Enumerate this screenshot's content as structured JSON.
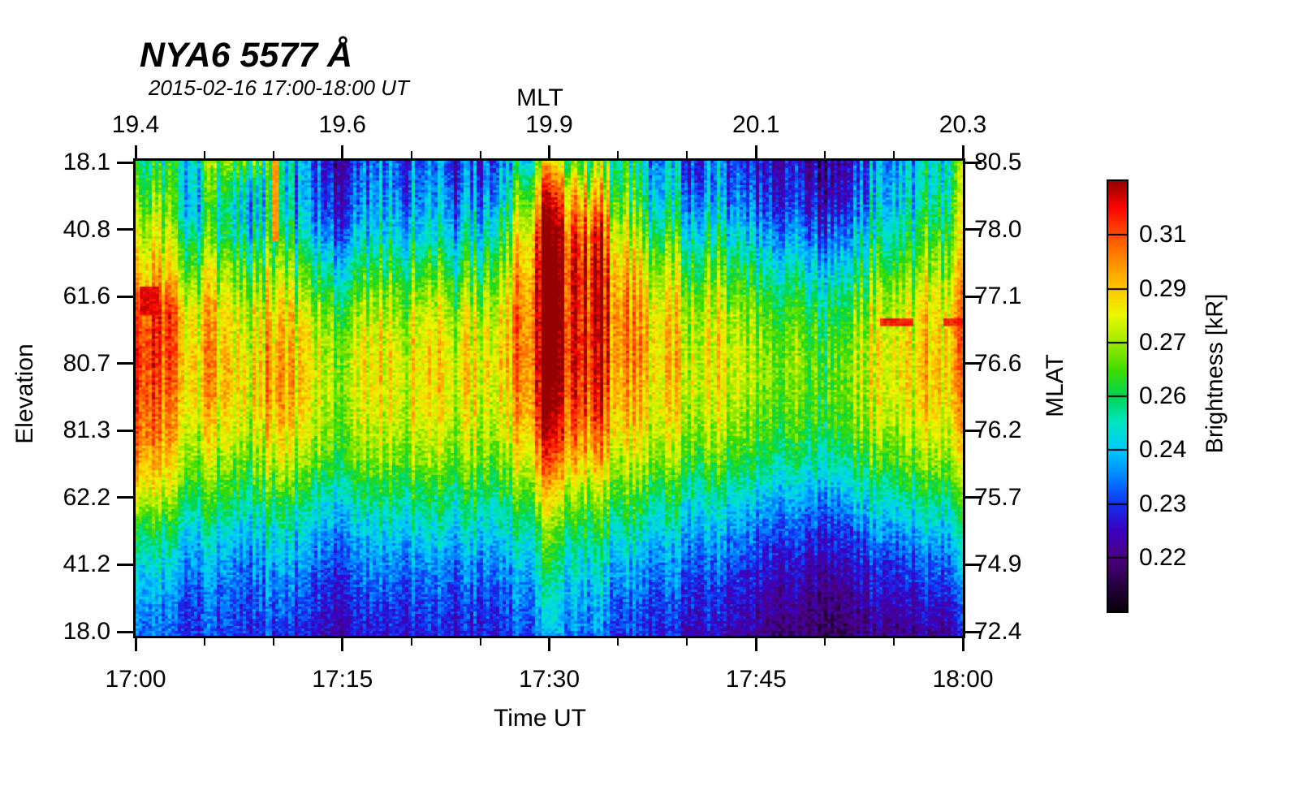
{
  "chart_data": {
    "type": "heatmap",
    "title": "NYA6 5577 Å",
    "subtitle": "2015-02-16 17:00-18:00 UT",
    "x": {
      "label": "Time UT",
      "range_minutes": [
        0,
        60
      ],
      "major_ticks": [
        "17:00",
        "17:15",
        "17:30",
        "17:45",
        "18:00"
      ],
      "minor_tick_every_minutes": 5
    },
    "x_top": {
      "label": "MLT",
      "tick_labels": [
        "19.4",
        "19.6",
        "19.9",
        "20.1",
        "20.3"
      ]
    },
    "y_left": {
      "label": "Elevation",
      "tick_labels": [
        "18.1",
        "40.8",
        "61.6",
        "80.7",
        "81.3",
        "62.2",
        "41.2",
        "18.0"
      ]
    },
    "y_right": {
      "label": "MLAT",
      "tick_labels": [
        "80.5",
        "78.0",
        "77.1",
        "76.6",
        "76.2",
        "75.7",
        "74.9",
        "72.4"
      ]
    },
    "colorbar": {
      "label": "Brightness [kR]",
      "tick_labels": [
        "0.31",
        "0.29",
        "0.27",
        "0.26",
        "0.24",
        "0.23",
        "0.22"
      ],
      "segments": 8
    },
    "colormap_stops": [
      [
        0.0,
        "#0a000a"
      ],
      [
        0.06,
        "#26003e"
      ],
      [
        0.125,
        "#4b0082"
      ],
      [
        0.19,
        "#3a00c0"
      ],
      [
        0.25,
        "#1430f0"
      ],
      [
        0.31,
        "#0080ff"
      ],
      [
        0.375,
        "#00c8ff"
      ],
      [
        0.44,
        "#00e6c0"
      ],
      [
        0.5,
        "#00d455"
      ],
      [
        0.56,
        "#3cdc00"
      ],
      [
        0.625,
        "#a0e800"
      ],
      [
        0.69,
        "#eaf800"
      ],
      [
        0.75,
        "#ffc800"
      ],
      [
        0.81,
        "#ff9100"
      ],
      [
        0.875,
        "#ff4e00"
      ],
      [
        0.94,
        "#f80400"
      ],
      [
        1.0,
        "#960000"
      ]
    ],
    "grid_rows": 20,
    "grid_cols": 30,
    "grid_columns": [
      [
        0.5,
        0.55,
        0.62,
        0.68,
        0.73,
        0.78,
        0.85,
        0.9,
        0.92,
        0.9,
        0.88,
        0.85,
        0.8,
        0.72,
        0.6,
        0.5,
        0.42,
        0.38,
        0.33,
        0.3
      ],
      [
        0.45,
        0.5,
        0.56,
        0.62,
        0.68,
        0.76,
        0.88,
        0.86,
        0.85,
        0.83,
        0.8,
        0.78,
        0.72,
        0.65,
        0.55,
        0.46,
        0.4,
        0.35,
        0.3,
        0.28
      ],
      [
        0.52,
        0.48,
        0.46,
        0.55,
        0.62,
        0.7,
        0.76,
        0.78,
        0.8,
        0.78,
        0.75,
        0.7,
        0.65,
        0.58,
        0.5,
        0.42,
        0.37,
        0.32,
        0.29,
        0.27
      ],
      [
        0.58,
        0.52,
        0.48,
        0.5,
        0.6,
        0.66,
        0.71,
        0.73,
        0.75,
        0.75,
        0.72,
        0.68,
        0.62,
        0.55,
        0.48,
        0.4,
        0.35,
        0.3,
        0.28,
        0.25
      ],
      [
        0.6,
        0.45,
        0.4,
        0.46,
        0.55,
        0.61,
        0.68,
        0.7,
        0.72,
        0.72,
        0.7,
        0.65,
        0.6,
        0.52,
        0.45,
        0.38,
        0.33,
        0.3,
        0.27,
        0.24
      ],
      [
        0.3,
        0.28,
        0.31,
        0.38,
        0.48,
        0.56,
        0.62,
        0.66,
        0.7,
        0.7,
        0.68,
        0.64,
        0.58,
        0.5,
        0.42,
        0.36,
        0.3,
        0.26,
        0.23,
        0.2
      ],
      [
        0.25,
        0.25,
        0.28,
        0.35,
        0.45,
        0.52,
        0.6,
        0.64,
        0.66,
        0.66,
        0.65,
        0.62,
        0.56,
        0.48,
        0.4,
        0.34,
        0.29,
        0.25,
        0.22,
        0.19
      ],
      [
        0.22,
        0.24,
        0.27,
        0.33,
        0.42,
        0.5,
        0.58,
        0.62,
        0.64,
        0.65,
        0.63,
        0.6,
        0.55,
        0.47,
        0.4,
        0.33,
        0.28,
        0.24,
        0.21,
        0.18
      ],
      [
        0.24,
        0.26,
        0.3,
        0.36,
        0.44,
        0.52,
        0.6,
        0.64,
        0.66,
        0.66,
        0.64,
        0.61,
        0.56,
        0.48,
        0.41,
        0.35,
        0.3,
        0.26,
        0.22,
        0.19
      ],
      [
        0.26,
        0.28,
        0.32,
        0.38,
        0.46,
        0.54,
        0.6,
        0.64,
        0.67,
        0.67,
        0.65,
        0.62,
        0.57,
        0.5,
        0.43,
        0.36,
        0.31,
        0.27,
        0.23,
        0.2
      ],
      [
        0.28,
        0.3,
        0.34,
        0.4,
        0.5,
        0.58,
        0.64,
        0.68,
        0.7,
        0.7,
        0.68,
        0.64,
        0.6,
        0.52,
        0.45,
        0.38,
        0.32,
        0.28,
        0.25,
        0.22
      ],
      [
        0.26,
        0.28,
        0.32,
        0.4,
        0.48,
        0.56,
        0.63,
        0.67,
        0.69,
        0.69,
        0.67,
        0.63,
        0.58,
        0.5,
        0.44,
        0.37,
        0.31,
        0.27,
        0.24,
        0.21
      ],
      [
        0.28,
        0.3,
        0.35,
        0.42,
        0.5,
        0.58,
        0.65,
        0.68,
        0.7,
        0.7,
        0.68,
        0.65,
        0.6,
        0.53,
        0.46,
        0.39,
        0.33,
        0.28,
        0.25,
        0.22
      ],
      [
        0.4,
        0.45,
        0.52,
        0.6,
        0.67,
        0.72,
        0.76,
        0.78,
        0.78,
        0.76,
        0.73,
        0.69,
        0.63,
        0.56,
        0.49,
        0.43,
        0.37,
        0.32,
        0.28,
        0.25
      ],
      [
        0.6,
        0.75,
        0.85,
        0.92,
        0.95,
        0.97,
        0.98,
        0.98,
        0.97,
        0.95,
        0.92,
        0.87,
        0.8,
        0.7,
        0.6,
        0.52,
        0.45,
        0.4,
        0.36,
        0.32
      ],
      [
        0.65,
        0.82,
        0.92,
        0.97,
        1.0,
        1.0,
        1.0,
        1.0,
        1.0,
        0.98,
        0.95,
        0.9,
        0.82,
        0.72,
        0.62,
        0.54,
        0.47,
        0.42,
        0.38,
        0.34
      ],
      [
        0.6,
        0.72,
        0.84,
        0.92,
        0.96,
        0.97,
        0.97,
        0.96,
        0.95,
        0.93,
        0.9,
        0.84,
        0.76,
        0.66,
        0.57,
        0.5,
        0.44,
        0.39,
        0.35,
        0.31
      ],
      [
        0.45,
        0.5,
        0.56,
        0.63,
        0.7,
        0.74,
        0.77,
        0.78,
        0.77,
        0.75,
        0.72,
        0.68,
        0.62,
        0.55,
        0.48,
        0.41,
        0.35,
        0.3,
        0.26,
        0.23
      ],
      [
        0.38,
        0.42,
        0.48,
        0.56,
        0.64,
        0.7,
        0.74,
        0.76,
        0.76,
        0.74,
        0.72,
        0.68,
        0.62,
        0.54,
        0.47,
        0.4,
        0.34,
        0.3,
        0.26,
        0.23
      ],
      [
        0.32,
        0.36,
        0.42,
        0.5,
        0.58,
        0.64,
        0.69,
        0.71,
        0.72,
        0.71,
        0.69,
        0.65,
        0.59,
        0.51,
        0.44,
        0.37,
        0.32,
        0.28,
        0.24,
        0.21
      ],
      [
        0.28,
        0.3,
        0.36,
        0.44,
        0.52,
        0.59,
        0.64,
        0.67,
        0.68,
        0.67,
        0.65,
        0.61,
        0.55,
        0.47,
        0.4,
        0.34,
        0.29,
        0.25,
        0.22,
        0.19
      ],
      [
        0.25,
        0.27,
        0.32,
        0.4,
        0.48,
        0.55,
        0.61,
        0.64,
        0.65,
        0.64,
        0.62,
        0.58,
        0.52,
        0.44,
        0.37,
        0.31,
        0.26,
        0.22,
        0.19,
        0.16
      ],
      [
        0.22,
        0.24,
        0.29,
        0.36,
        0.44,
        0.51,
        0.57,
        0.6,
        0.62,
        0.61,
        0.59,
        0.55,
        0.49,
        0.41,
        0.34,
        0.28,
        0.23,
        0.19,
        0.16,
        0.13
      ],
      [
        0.2,
        0.22,
        0.26,
        0.33,
        0.41,
        0.48,
        0.54,
        0.58,
        0.6,
        0.59,
        0.57,
        0.53,
        0.47,
        0.39,
        0.32,
        0.26,
        0.21,
        0.17,
        0.14,
        0.11
      ],
      [
        0.18,
        0.2,
        0.24,
        0.31,
        0.39,
        0.46,
        0.52,
        0.56,
        0.58,
        0.58,
        0.56,
        0.52,
        0.46,
        0.38,
        0.3,
        0.24,
        0.19,
        0.15,
        0.12,
        0.1
      ],
      [
        0.2,
        0.22,
        0.26,
        0.33,
        0.41,
        0.48,
        0.54,
        0.58,
        0.6,
        0.6,
        0.58,
        0.54,
        0.48,
        0.4,
        0.32,
        0.25,
        0.2,
        0.16,
        0.13,
        0.1
      ],
      [
        0.25,
        0.28,
        0.32,
        0.38,
        0.46,
        0.53,
        0.58,
        0.62,
        0.64,
        0.63,
        0.61,
        0.57,
        0.51,
        0.43,
        0.35,
        0.28,
        0.22,
        0.18,
        0.14,
        0.11
      ],
      [
        0.3,
        0.33,
        0.37,
        0.43,
        0.5,
        0.57,
        0.62,
        0.65,
        0.67,
        0.66,
        0.64,
        0.6,
        0.54,
        0.46,
        0.38,
        0.3,
        0.24,
        0.19,
        0.15,
        0.12
      ],
      [
        0.35,
        0.38,
        0.42,
        0.48,
        0.55,
        0.61,
        0.66,
        0.68,
        0.7,
        0.69,
        0.67,
        0.63,
        0.57,
        0.49,
        0.41,
        0.33,
        0.27,
        0.22,
        0.17,
        0.13
      ],
      [
        0.5,
        0.52,
        0.55,
        0.58,
        0.63,
        0.68,
        0.72,
        0.75,
        0.75,
        0.74,
        0.71,
        0.67,
        0.61,
        0.53,
        0.45,
        0.37,
        0.31,
        0.26,
        0.21,
        0.17
      ]
    ],
    "features": [
      {
        "name": "red-streak-left",
        "t": [
          0.3,
          1.7
        ],
        "row": [
          0.265,
          0.325
        ],
        "value": 0.95
      },
      {
        "name": "bright-top-stripe",
        "t": [
          9.9,
          10.4
        ],
        "row": [
          0.0,
          0.17
        ],
        "value": 0.8
      },
      {
        "name": "red-dash-1",
        "t": [
          54.0,
          56.4
        ],
        "row": [
          0.332,
          0.348
        ],
        "value": 0.93
      },
      {
        "name": "red-dash-2",
        "t": [
          58.6,
          60.0
        ],
        "row": [
          0.332,
          0.348
        ],
        "value": 0.93
      }
    ],
    "texture": {
      "stripe_windows": [
        {
          "t": [
            2.5,
            12
          ],
          "amp": 2.1
        },
        {
          "t": [
            26,
            34
          ],
          "amp": 1.25
        },
        {
          "t": [
            34,
            40
          ],
          "amp": 1.5
        },
        {
          "t": [
            51,
            60
          ],
          "amp": 1.6
        }
      ]
    }
  }
}
